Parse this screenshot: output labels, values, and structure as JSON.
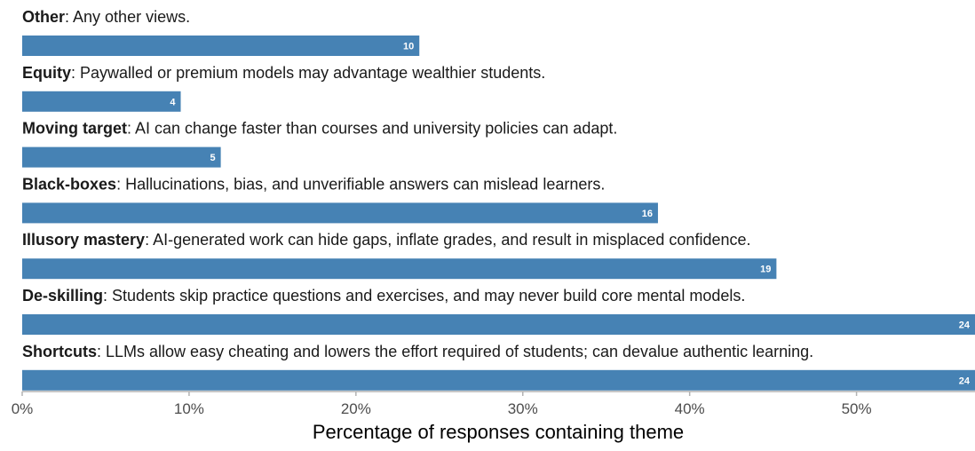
{
  "chart_data": {
    "type": "hbar",
    "categories": [
      "Other",
      "Equity",
      "Moving target",
      "Black-boxes",
      "Illusory mastery",
      "De-skilling",
      "Shortcuts"
    ],
    "descriptions": [
      ": Any other views.",
      ": Paywalled or premium models may advantage wealthier students.",
      ": AI can change faster than courses and university policies can adapt.",
      ": Hallucinations, bias, and unverifiable answers can mislead learners.",
      ": AI-generated work can hide gaps, inflate grades, and result in misplaced confidence.",
      ": Students skip practice questions and exercises, and may never build core mental models.",
      ": LLMs allow easy cheating and lowers the effort required of students; can devalue authentic learning."
    ],
    "values": [
      23.8,
      9.5,
      11.9,
      38.1,
      45.2,
      57.1,
      57.1
    ],
    "counts": [
      10,
      4,
      5,
      16,
      19,
      24,
      24
    ],
    "color": "#4682b4",
    "xlabel": "Percentage of responses containing theme",
    "xlim": [
      0,
      57.1
    ],
    "xticks": [
      {
        "value": 0,
        "label": "0%"
      },
      {
        "value": 10,
        "label": "10%"
      },
      {
        "value": 20,
        "label": "20%"
      },
      {
        "value": 30,
        "label": "30%"
      },
      {
        "value": 40,
        "label": "40%"
      },
      {
        "value": 50,
        "label": "50%"
      }
    ]
  }
}
